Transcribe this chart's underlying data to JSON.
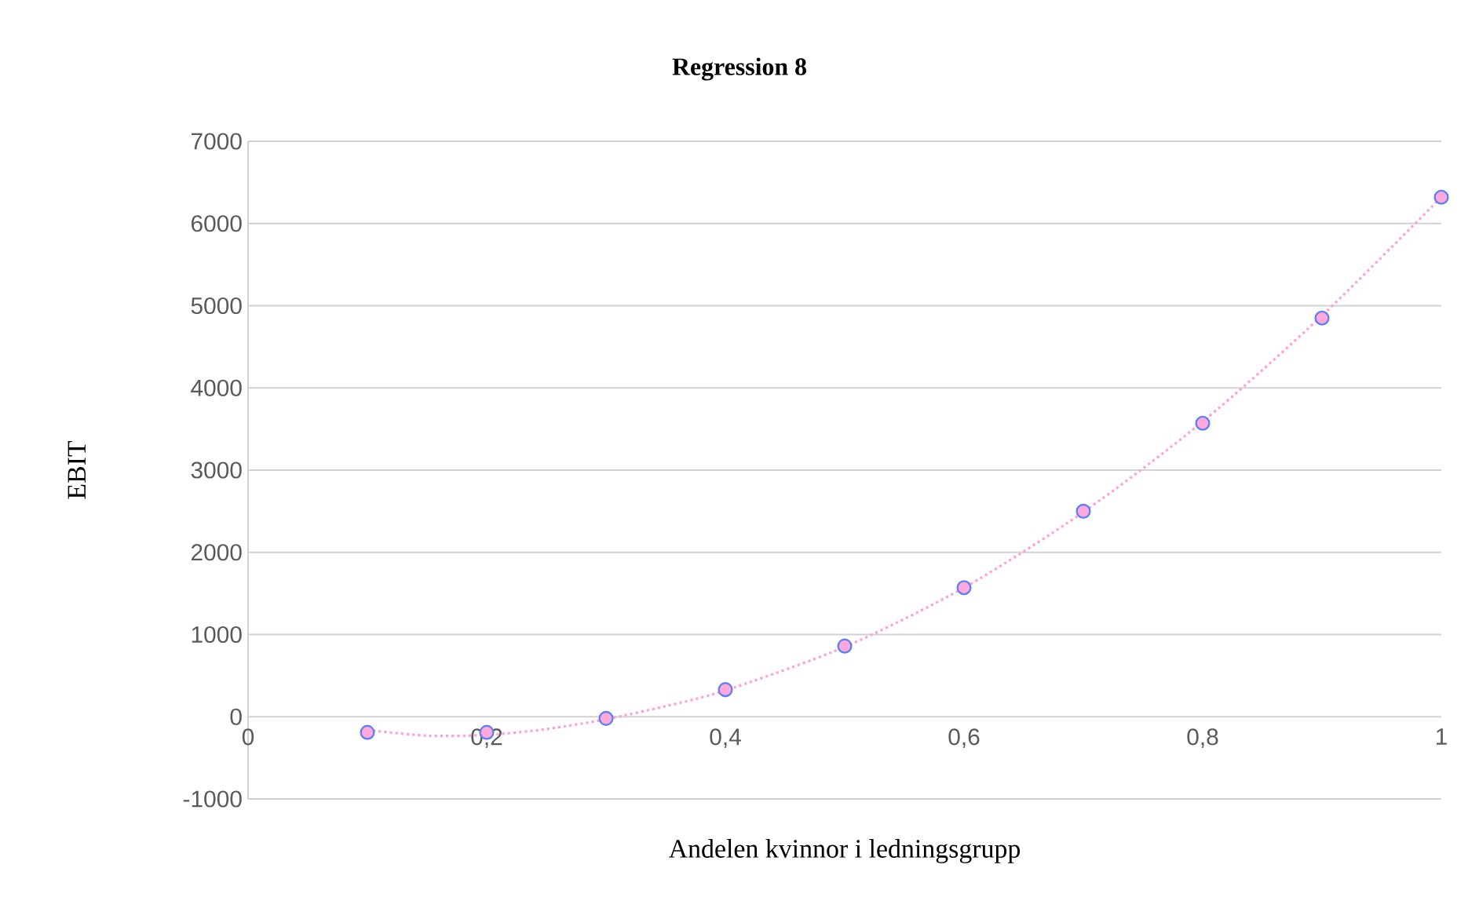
{
  "chart_data": {
    "type": "scatter",
    "title": "Regression 8",
    "xlabel": "Andelen kvinnor i ledningsgrupp",
    "ylabel": "EBIT",
    "series": [
      {
        "type": "line",
        "color": "#ff9fdc",
        "line_style": "dotted",
        "marker": "none",
        "x": [
          0.1,
          0.15,
          0.2,
          0.25,
          0.3,
          0.35,
          0.4,
          0.5,
          0.6,
          0.7,
          0.8,
          0.9,
          1.0
        ],
        "values": [
          -160,
          -230,
          -220,
          -150,
          -30,
          130,
          320,
          850,
          1570,
          2490,
          3590,
          4880,
          6320
        ]
      },
      {
        "color": "#ffa8dc",
        "marker": "circle",
        "x": [
          0.1,
          0.2,
          0.3,
          0.4,
          0.5,
          0.6,
          0.7,
          0.8,
          0.9,
          1.0
        ],
        "values": [
          -190,
          -190,
          -20,
          330,
          860,
          1570,
          2500,
          3570,
          4850,
          6320
        ]
      }
    ],
    "xlim": [
      0,
      1
    ],
    "xticks": [
      0,
      {
        "value": 0.2,
        "label": "0,2"
      },
      {
        "value": 0.4,
        "label": "0,4"
      },
      {
        "value": 0.6,
        "label": "0,6"
      },
      {
        "value": 0.8,
        "label": "0,8"
      },
      1
    ],
    "ylim": [
      -1000,
      7000
    ],
    "yticks": [
      -1000,
      0,
      1000,
      2000,
      3000,
      4000,
      5000,
      6000,
      7000
    ],
    "grid": "y"
  }
}
